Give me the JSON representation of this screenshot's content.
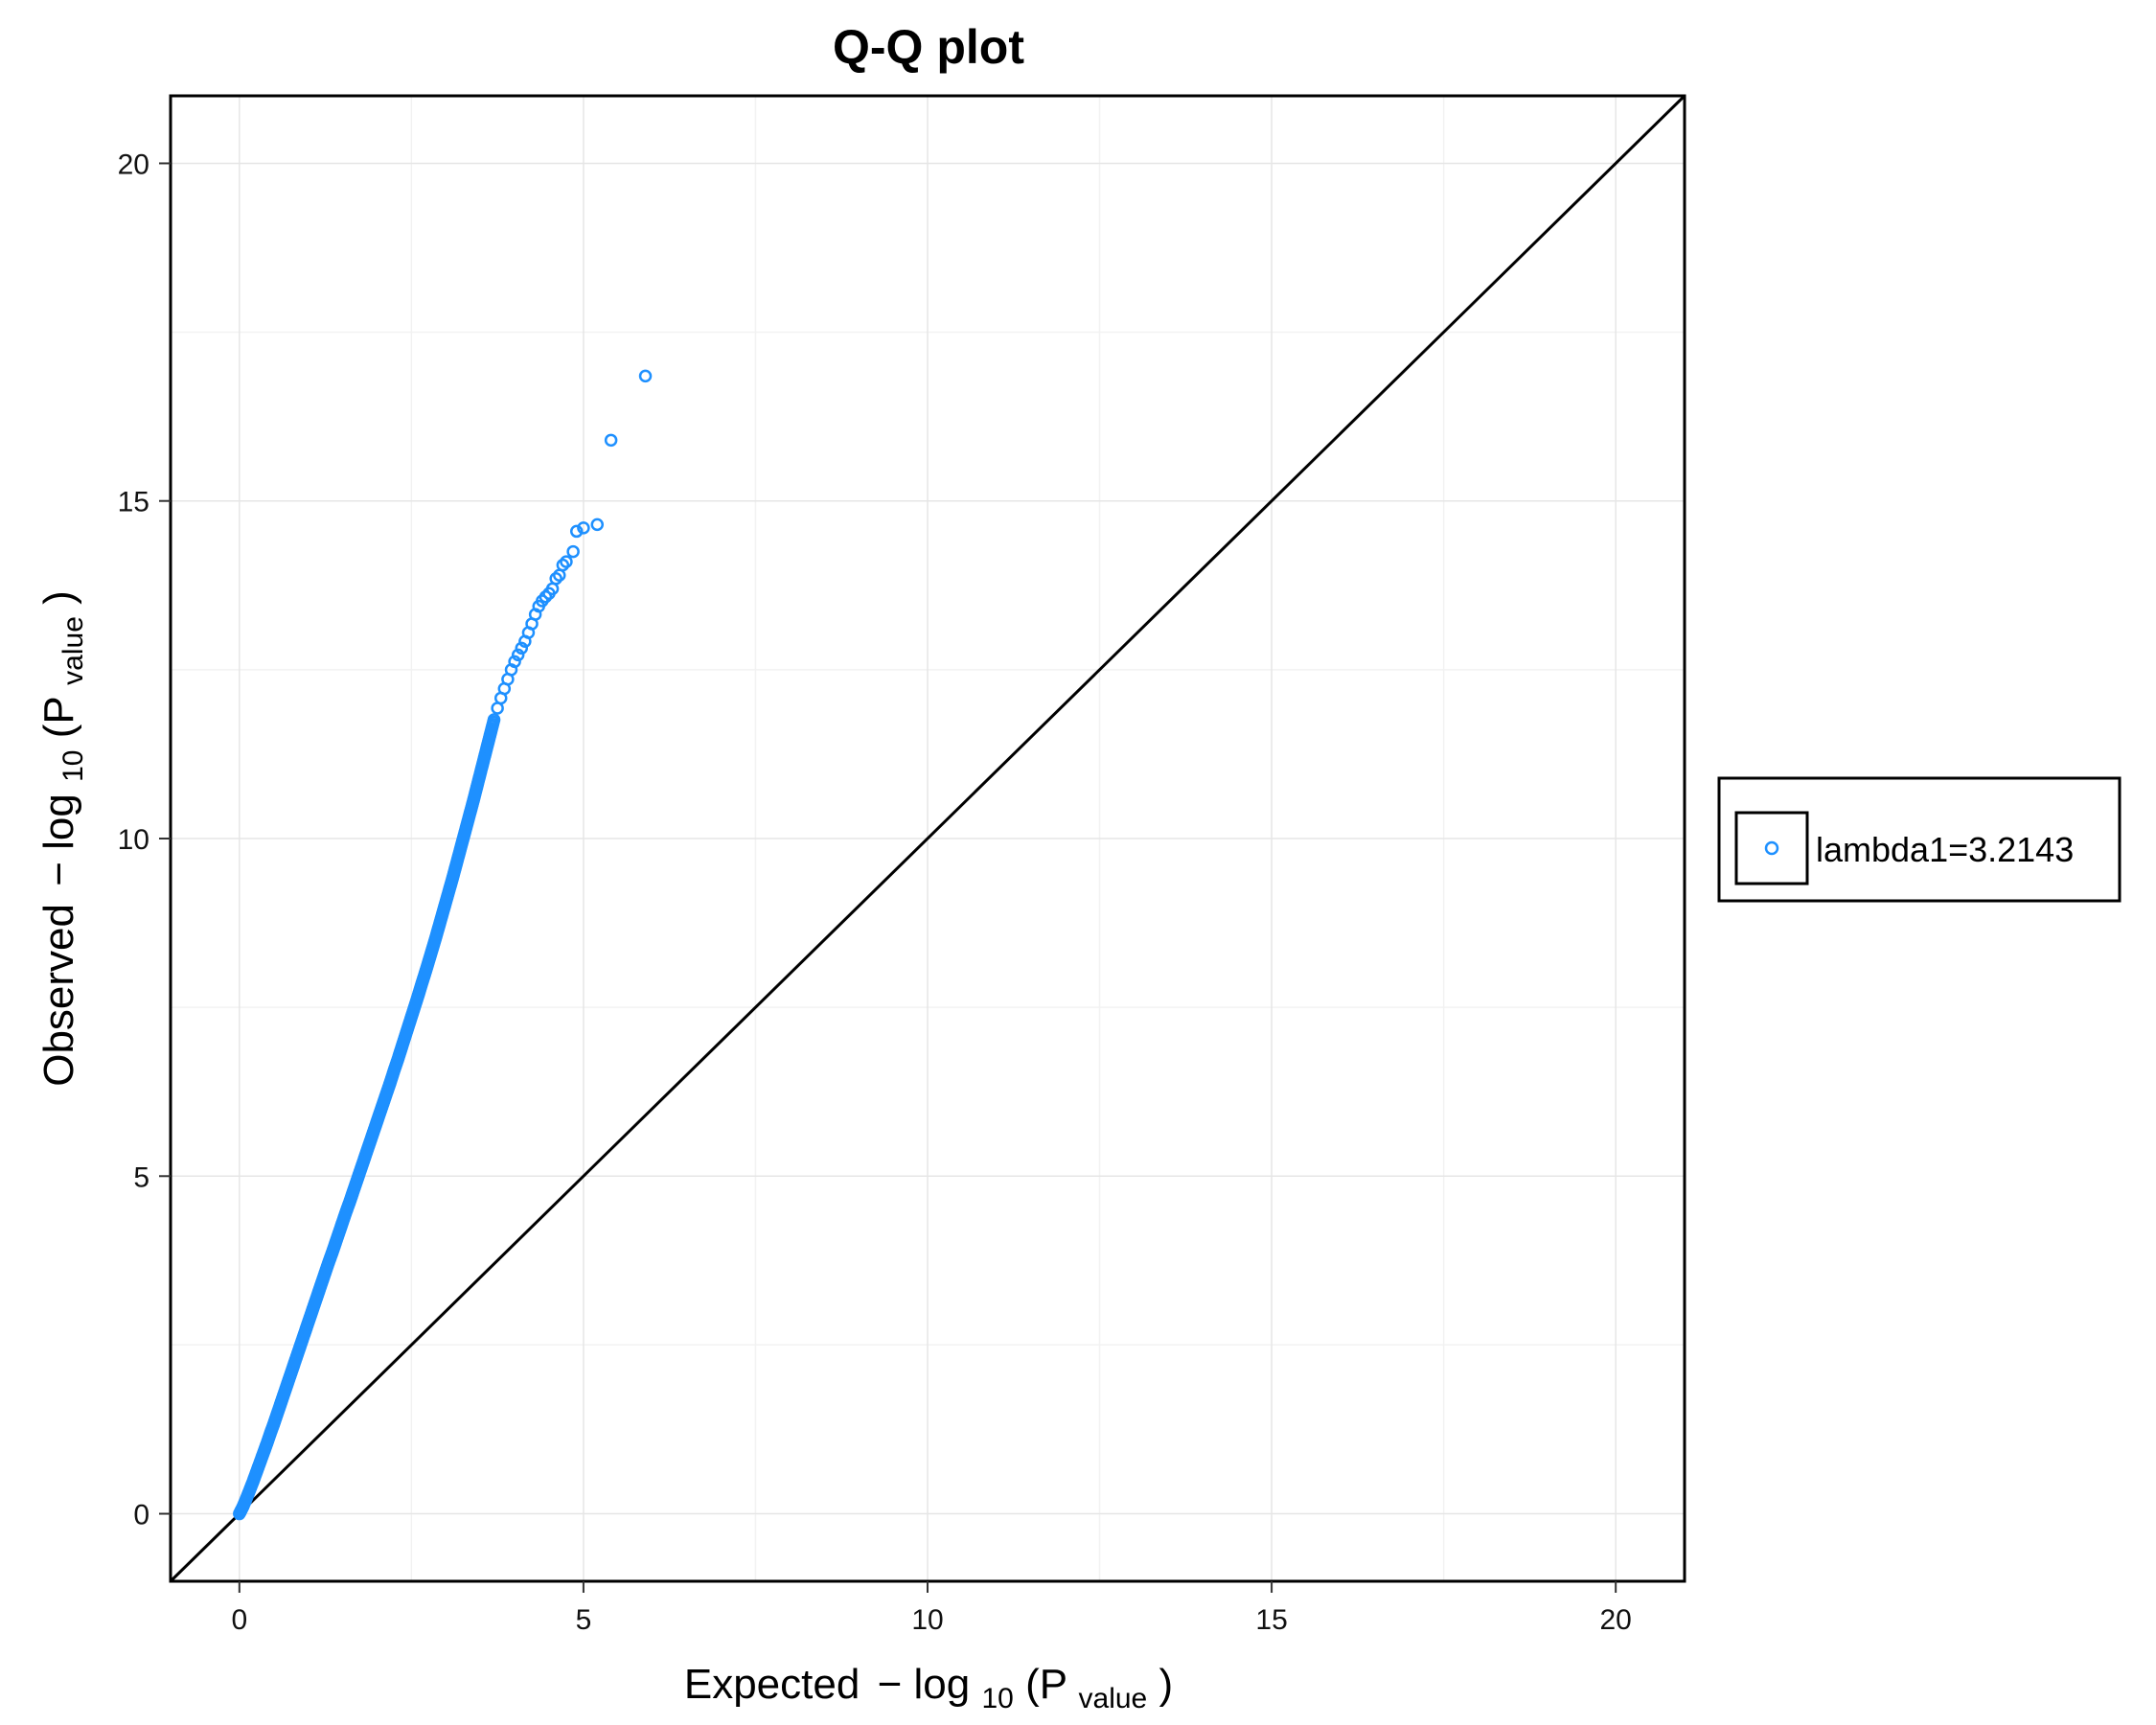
{
  "chart_data": {
    "type": "scatter",
    "title": "Q-Q plot",
    "xlabel": {
      "prefix": "Expected",
      "minus": "−",
      "log": "log",
      "log_base": "10",
      "paren_open": "(P",
      "subscript": "value",
      "paren_close": ")"
    },
    "ylabel": {
      "prefix": "Observed",
      "minus": "−",
      "log": "log",
      "log_base": "10",
      "paren_open": "(P",
      "subscript": "value",
      "paren_close": ")"
    },
    "xlim": [
      -1,
      21
    ],
    "ylim": [
      -1,
      21
    ],
    "x_ticks": [
      0,
      5,
      10,
      15,
      20
    ],
    "y_ticks": [
      0,
      5,
      10,
      15,
      20
    ],
    "x_minor_ticks": [
      2.5,
      7.5,
      12.5,
      17.5
    ],
    "y_minor_ticks": [
      2.5,
      7.5,
      12.5,
      17.5
    ],
    "grid": true,
    "reference_line": {
      "slope": 1,
      "intercept": 0,
      "color": "#000000"
    },
    "legend": {
      "position": "right",
      "entries": [
        "lambda1=3.2143"
      ]
    },
    "series": [
      {
        "name": "lambda1=3.2143",
        "color": "#1e90ff",
        "marker": "open-circle",
        "points": [
          [
            0.0,
            0.0
          ],
          [
            0.05,
            0.1
          ],
          [
            0.1,
            0.22
          ],
          [
            0.15,
            0.35
          ],
          [
            0.2,
            0.48
          ],
          [
            0.25,
            0.62
          ],
          [
            0.3,
            0.76
          ],
          [
            0.35,
            0.9
          ],
          [
            0.4,
            1.04
          ],
          [
            0.45,
            1.19
          ],
          [
            0.5,
            1.33
          ],
          [
            0.55,
            1.48
          ],
          [
            0.6,
            1.63
          ],
          [
            0.65,
            1.78
          ],
          [
            0.7,
            1.93
          ],
          [
            0.75,
            2.08
          ],
          [
            0.8,
            2.23
          ],
          [
            0.85,
            2.38
          ],
          [
            0.9,
            2.53
          ],
          [
            0.95,
            2.68
          ],
          [
            1.0,
            2.83
          ],
          [
            1.05,
            2.98
          ],
          [
            1.1,
            3.13
          ],
          [
            1.15,
            3.28
          ],
          [
            1.2,
            3.43
          ],
          [
            1.25,
            3.58
          ],
          [
            1.3,
            3.73
          ],
          [
            1.35,
            3.87
          ],
          [
            1.4,
            4.02
          ],
          [
            1.45,
            4.17
          ],
          [
            1.5,
            4.32
          ],
          [
            1.55,
            4.47
          ],
          [
            1.6,
            4.61
          ],
          [
            1.65,
            4.76
          ],
          [
            1.7,
            4.91
          ],
          [
            1.75,
            5.06
          ],
          [
            1.8,
            5.21
          ],
          [
            1.85,
            5.36
          ],
          [
            1.9,
            5.51
          ],
          [
            1.95,
            5.66
          ],
          [
            2.0,
            5.81
          ],
          [
            2.05,
            5.96
          ],
          [
            2.1,
            6.11
          ],
          [
            2.15,
            6.26
          ],
          [
            2.2,
            6.41
          ],
          [
            2.25,
            6.57
          ],
          [
            2.3,
            6.72
          ],
          [
            2.35,
            6.88
          ],
          [
            2.4,
            7.04
          ],
          [
            2.45,
            7.2
          ],
          [
            2.5,
            7.36
          ],
          [
            2.55,
            7.52
          ],
          [
            2.6,
            7.68
          ],
          [
            2.65,
            7.85
          ],
          [
            2.7,
            8.01
          ],
          [
            2.75,
            8.18
          ],
          [
            2.8,
            8.35
          ],
          [
            2.85,
            8.52
          ],
          [
            2.9,
            8.7
          ],
          [
            2.95,
            8.88
          ],
          [
            3.0,
            9.06
          ],
          [
            3.05,
            9.24
          ],
          [
            3.1,
            9.42
          ],
          [
            3.15,
            9.61
          ],
          [
            3.2,
            9.8
          ],
          [
            3.25,
            9.99
          ],
          [
            3.3,
            10.18
          ],
          [
            3.35,
            10.37
          ],
          [
            3.4,
            10.56
          ],
          [
            3.45,
            10.76
          ],
          [
            3.5,
            10.96
          ],
          [
            3.55,
            11.16
          ],
          [
            3.6,
            11.36
          ],
          [
            3.65,
            11.56
          ],
          [
            3.7,
            11.76
          ],
          [
            3.75,
            11.93
          ],
          [
            3.8,
            12.08
          ],
          [
            3.85,
            12.22
          ],
          [
            3.9,
            12.36
          ],
          [
            3.95,
            12.5
          ],
          [
            4.0,
            12.62
          ],
          [
            4.05,
            12.72
          ],
          [
            4.1,
            12.82
          ],
          [
            4.15,
            12.92
          ],
          [
            4.2,
            13.05
          ],
          [
            4.25,
            13.18
          ],
          [
            4.3,
            13.32
          ],
          [
            4.35,
            13.44
          ],
          [
            4.4,
            13.52
          ],
          [
            4.45,
            13.58
          ],
          [
            4.5,
            13.63
          ],
          [
            4.55,
            13.7
          ],
          [
            4.6,
            13.85
          ],
          [
            4.65,
            13.9
          ],
          [
            4.7,
            14.05
          ],
          [
            4.75,
            14.1
          ],
          [
            4.85,
            14.25
          ],
          [
            4.9,
            14.55
          ],
          [
            5.0,
            14.6
          ],
          [
            5.2,
            14.65
          ],
          [
            5.4,
            15.9
          ],
          [
            5.9,
            16.85
          ]
        ]
      }
    ]
  }
}
